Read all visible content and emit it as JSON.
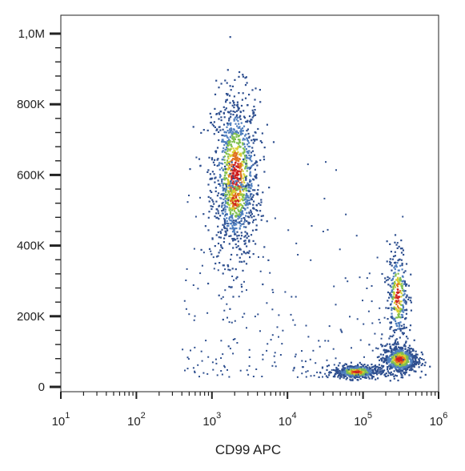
{
  "chart_data": {
    "type": "scatter",
    "title": "",
    "xlabel": "CD99 APC",
    "ylabel": "",
    "x_scale": "log",
    "xlim": [
      10,
      1000000
    ],
    "ylim": [
      0,
      1000000
    ],
    "x_ticks": [
      {
        "value": 10,
        "base": "10",
        "exp": "1"
      },
      {
        "value": 100,
        "base": "10",
        "exp": "2"
      },
      {
        "value": 1000,
        "base": "10",
        "exp": "3"
      },
      {
        "value": 10000,
        "base": "10",
        "exp": "4"
      },
      {
        "value": 100000,
        "base": "10",
        "exp": "5"
      },
      {
        "value": 1000000,
        "base": "10",
        "exp": "6"
      }
    ],
    "y_ticks": [
      {
        "value": 0,
        "label": "0"
      },
      {
        "value": 200000,
        "label": "200K"
      },
      {
        "value": 400000,
        "label": "400K"
      },
      {
        "value": 600000,
        "label": "600K"
      },
      {
        "value": 800000,
        "label": "800K"
      },
      {
        "value": 1000000,
        "label": "1,0M"
      }
    ],
    "grid": false,
    "legend": "none",
    "density_colors": [
      "#2e4f8f",
      "#4f7fbf",
      "#7fbf4f",
      "#d8d030",
      "#e07020",
      "#d02020"
    ],
    "populations": [
      {
        "x_center": 2000,
        "x_spread_decades": 0.16,
        "y_center": 600000,
        "y_spread": 120000,
        "count": 1100
      },
      {
        "x_center": 2000,
        "x_spread_decades": 0.12,
        "y_center": 530000,
        "y_spread": 40000,
        "count": 200
      },
      {
        "x_center": 80000,
        "x_spread_decades": 0.15,
        "y_center": 45000,
        "y_spread": 10000,
        "count": 450
      },
      {
        "x_center": 300000,
        "x_spread_decades": 0.12,
        "y_center": 80000,
        "y_spread": 20000,
        "count": 650
      },
      {
        "x_center": 280000,
        "x_spread_decades": 0.07,
        "y_center": 260000,
        "y_spread": 70000,
        "count": 320
      }
    ]
  }
}
